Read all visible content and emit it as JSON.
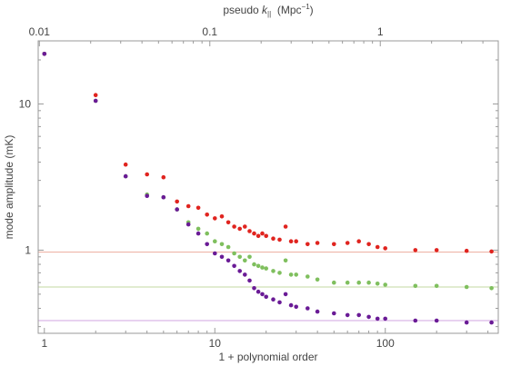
{
  "chart_data": {
    "type": "scatter",
    "title": "",
    "xlabel": "1 + polynomial order",
    "ylabel": "mode amplitude  (mK)",
    "top_axis_label": {
      "prefix": "pseudo ",
      "symbol": "k",
      "subscript": "||",
      "units_prefix": "  (Mpc",
      "units_sup": "−1",
      "units_suffix": ")"
    },
    "x_scale": "log",
    "y_scale": "log",
    "xlim": [
      0.92,
      460
    ],
    "ylim": [
      0.27,
      27
    ],
    "x_ticks": [
      {
        "value": 1,
        "label": "1"
      },
      {
        "value": 10,
        "label": "10"
      },
      {
        "value": 100,
        "label": "100"
      }
    ],
    "y_ticks": [
      {
        "value": 1,
        "label": "1"
      },
      {
        "value": 10,
        "label": "10"
      }
    ],
    "top_ticks": [
      {
        "value": 0.01,
        "label": "0.01"
      },
      {
        "value": 0.1,
        "label": "0.1"
      },
      {
        "value": 1,
        "label": "1"
      }
    ],
    "top_axis_scale_note": "top axis k = 0.0107 × (1 + polynomial order)",
    "grid": false,
    "reference_lines": [
      {
        "y": 0.97,
        "color": "#efb5a8"
      },
      {
        "y": 0.56,
        "color": "#cfe0b3"
      },
      {
        "y": 0.33,
        "color": "#dab6e8"
      }
    ],
    "series": [
      {
        "color": "#e0241f",
        "points": [
          [
            1,
            22.0
          ],
          [
            2,
            11.5
          ],
          [
            3,
            3.85
          ],
          [
            4,
            3.3
          ],
          [
            5,
            3.15
          ],
          [
            6,
            2.15
          ],
          [
            7,
            2.0
          ],
          [
            8,
            1.95
          ],
          [
            9,
            1.75
          ],
          [
            10,
            1.65
          ],
          [
            11,
            1.7
          ],
          [
            12,
            1.55
          ],
          [
            13,
            1.45
          ],
          [
            14,
            1.4
          ],
          [
            15,
            1.45
          ],
          [
            16,
            1.35
          ],
          [
            17,
            1.3
          ],
          [
            18,
            1.25
          ],
          [
            19,
            1.3
          ],
          [
            20,
            1.25
          ],
          [
            22,
            1.2
          ],
          [
            24,
            1.18
          ],
          [
            26,
            1.45
          ],
          [
            28,
            1.15
          ],
          [
            30,
            1.15
          ],
          [
            35,
            1.1
          ],
          [
            40,
            1.12
          ],
          [
            50,
            1.1
          ],
          [
            60,
            1.12
          ],
          [
            70,
            1.15
          ],
          [
            80,
            1.1
          ],
          [
            90,
            1.05
          ],
          [
            100,
            1.03
          ],
          [
            150,
            1.0
          ],
          [
            200,
            1.0
          ],
          [
            300,
            0.99
          ],
          [
            420,
            0.98
          ]
        ]
      },
      {
        "color": "#7fbf5e",
        "points": [
          [
            1,
            22.0
          ],
          [
            2,
            10.5
          ],
          [
            3,
            3.2
          ],
          [
            4,
            2.4
          ],
          [
            5,
            2.3
          ],
          [
            6,
            1.9
          ],
          [
            7,
            1.55
          ],
          [
            8,
            1.4
          ],
          [
            9,
            1.3
          ],
          [
            10,
            1.15
          ],
          [
            11,
            1.1
          ],
          [
            12,
            1.05
          ],
          [
            13,
            0.95
          ],
          [
            14,
            0.9
          ],
          [
            15,
            0.85
          ],
          [
            16,
            0.9
          ],
          [
            17,
            0.8
          ],
          [
            18,
            0.78
          ],
          [
            19,
            0.76
          ],
          [
            20,
            0.75
          ],
          [
            22,
            0.72
          ],
          [
            24,
            0.7
          ],
          [
            26,
            0.85
          ],
          [
            28,
            0.68
          ],
          [
            30,
            0.68
          ],
          [
            35,
            0.66
          ],
          [
            40,
            0.63
          ],
          [
            50,
            0.6
          ],
          [
            60,
            0.6
          ],
          [
            70,
            0.6
          ],
          [
            80,
            0.6
          ],
          [
            90,
            0.59
          ],
          [
            100,
            0.58
          ],
          [
            150,
            0.57
          ],
          [
            200,
            0.57
          ],
          [
            300,
            0.56
          ],
          [
            420,
            0.55
          ]
        ]
      },
      {
        "color": "#6a1b96",
        "points": [
          [
            1,
            22.0
          ],
          [
            2,
            10.5
          ],
          [
            3,
            3.2
          ],
          [
            4,
            2.35
          ],
          [
            5,
            2.3
          ],
          [
            6,
            1.9
          ],
          [
            7,
            1.5
          ],
          [
            8,
            1.3
          ],
          [
            9,
            1.1
          ],
          [
            10,
            0.95
          ],
          [
            11,
            0.9
          ],
          [
            12,
            0.85
          ],
          [
            13,
            0.78
          ],
          [
            14,
            0.72
          ],
          [
            15,
            0.68
          ],
          [
            16,
            0.62
          ],
          [
            17,
            0.55
          ],
          [
            18,
            0.52
          ],
          [
            19,
            0.5
          ],
          [
            20,
            0.48
          ],
          [
            22,
            0.46
          ],
          [
            24,
            0.44
          ],
          [
            26,
            0.5
          ],
          [
            28,
            0.42
          ],
          [
            30,
            0.41
          ],
          [
            35,
            0.4
          ],
          [
            40,
            0.38
          ],
          [
            50,
            0.37
          ],
          [
            60,
            0.36
          ],
          [
            70,
            0.36
          ],
          [
            80,
            0.35
          ],
          [
            90,
            0.34
          ],
          [
            100,
            0.34
          ],
          [
            150,
            0.33
          ],
          [
            200,
            0.33
          ],
          [
            300,
            0.32
          ],
          [
            420,
            0.32
          ]
        ]
      }
    ]
  }
}
